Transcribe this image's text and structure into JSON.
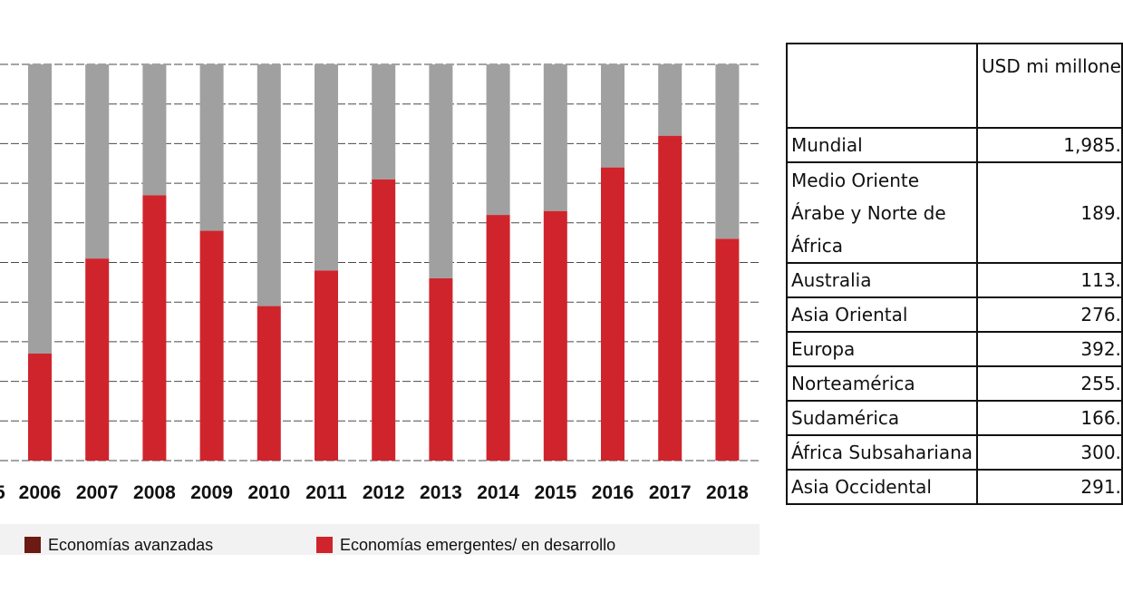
{
  "chart_data": {
    "type": "bar",
    "stacked": true,
    "categories": [
      "2006",
      "2007",
      "2008",
      "2009",
      "2010",
      "2011",
      "2012",
      "2013",
      "2014",
      "2015",
      "2016",
      "2017",
      "2018"
    ],
    "truncated_left_tick": "5",
    "series": [
      {
        "name": "Economías emergentes/ en desarrollo",
        "color": "#d0242c",
        "values": [
          27,
          51,
          67,
          58,
          39,
          48,
          71,
          46,
          62,
          63,
          74,
          82,
          56
        ]
      },
      {
        "name": "",
        "color": "#a0a0a0",
        "values": [
          73,
          49,
          33,
          42,
          61,
          52,
          29,
          54,
          38,
          37,
          26,
          18,
          44
        ]
      }
    ],
    "ylim": [
      0,
      100
    ],
    "grid": true,
    "legend": [
      {
        "label": "Economías avanzadas",
        "color": "#6b1a14"
      },
      {
        "label": "Economías emergentes/ en desarrollo",
        "color": "#d0242c"
      }
    ],
    "legend_position": "bottom"
  },
  "table": {
    "header": {
      "region": "",
      "value": "USD mi millone"
    },
    "rows": [
      {
        "region": "Mundial",
        "value": "1,985."
      },
      {
        "region": "Medio Oriente Árabe y Norte de África",
        "value": "189."
      },
      {
        "region": "Australia",
        "value": "113."
      },
      {
        "region": "Asia Oriental",
        "value": "276."
      },
      {
        "region": "Europa",
        "value": "392."
      },
      {
        "region": "Norteamérica",
        "value": "255."
      },
      {
        "region": "Sudamérica",
        "value": "166."
      },
      {
        "region": "África Subsahariana",
        "value": "300."
      },
      {
        "region": "Asia Occidental",
        "value": "291."
      }
    ]
  }
}
